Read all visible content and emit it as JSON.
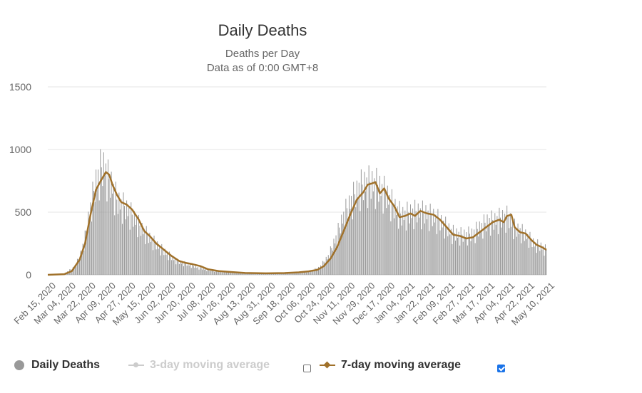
{
  "chart_data": {
    "type": "bar",
    "title": "Daily Deaths",
    "subtitle_lines": [
      "Deaths per Day",
      "Data as of 0:00 GMT+8"
    ],
    "ylim": [
      0,
      1500
    ],
    "yticks": [
      0,
      500,
      1000,
      1500
    ],
    "x_range": [
      "2020-02-15",
      "2021-05-15"
    ],
    "grid": true,
    "x_tick_labels": [
      "Feb 15, 2020",
      "Mar 04, 2020",
      "Mar 22, 2020",
      "Apr 09, 2020",
      "Apr 27, 2020",
      "May 15, 2020",
      "Jun 02, 2020",
      "Jun 20, 2020",
      "Jul 08, 2020",
      "Jul 26, 2020",
      "Aug 13, 2020",
      "Aug 31, 2020",
      "Sep 18, 2020",
      "Oct 06, 2020",
      "Oct 24, 2020",
      "Nov 11, 2020",
      "Nov 29, 2020",
      "Dec 17, 2020",
      "Jan 04, 2021",
      "Jan 22, 2021",
      "Feb 09, 2021",
      "Feb 27, 2021",
      "Mar 17, 2021",
      "Apr 04, 2021",
      "Apr 22, 2021",
      "May 10, 2021"
    ],
    "series": [
      {
        "name": "Daily Deaths",
        "kind": "bar",
        "color": "#999999",
        "visible": true,
        "points": [
          [
            "2020-02-15",
            0
          ],
          [
            "2020-03-01",
            10
          ],
          [
            "2020-03-10",
            60
          ],
          [
            "2020-03-15",
            140
          ],
          [
            "2020-03-20",
            300
          ],
          [
            "2020-03-25",
            550
          ],
          [
            "2020-03-30",
            750
          ],
          [
            "2020-04-03",
            850
          ],
          [
            "2020-04-07",
            880
          ],
          [
            "2020-04-10",
            780
          ],
          [
            "2020-04-14",
            720
          ],
          [
            "2020-04-18",
            600
          ],
          [
            "2020-04-25",
            550
          ],
          [
            "2020-05-02",
            480
          ],
          [
            "2020-05-10",
            380
          ],
          [
            "2020-05-18",
            300
          ],
          [
            "2020-05-26",
            230
          ],
          [
            "2020-06-03",
            170
          ],
          [
            "2020-06-12",
            110
          ],
          [
            "2020-06-20",
            90
          ],
          [
            "2020-07-01",
            60
          ],
          [
            "2020-07-10",
            40
          ],
          [
            "2020-07-25",
            25
          ],
          [
            "2020-08-13",
            15
          ],
          [
            "2020-09-01",
            12
          ],
          [
            "2020-09-18",
            15
          ],
          [
            "2020-10-01",
            20
          ],
          [
            "2020-10-12",
            30
          ],
          [
            "2020-10-20",
            60
          ],
          [
            "2020-10-28",
            150
          ],
          [
            "2020-11-04",
            300
          ],
          [
            "2020-11-11",
            480
          ],
          [
            "2020-11-18",
            600
          ],
          [
            "2020-11-25",
            700
          ],
          [
            "2020-12-01",
            740
          ],
          [
            "2020-12-08",
            740
          ],
          [
            "2020-12-15",
            700
          ],
          [
            "2020-12-20",
            650
          ],
          [
            "2020-12-27",
            550
          ],
          [
            "2021-01-03",
            480
          ],
          [
            "2021-01-10",
            500
          ],
          [
            "2021-01-17",
            510
          ],
          [
            "2021-01-24",
            500
          ],
          [
            "2021-02-01",
            470
          ],
          [
            "2021-02-09",
            420
          ],
          [
            "2021-02-18",
            340
          ],
          [
            "2021-02-27",
            320
          ],
          [
            "2021-03-08",
            330
          ],
          [
            "2021-03-15",
            380
          ],
          [
            "2021-03-22",
            430
          ],
          [
            "2021-03-29",
            440
          ],
          [
            "2021-04-04",
            460
          ],
          [
            "2021-04-10",
            470
          ],
          [
            "2021-04-16",
            380
          ],
          [
            "2021-04-22",
            350
          ],
          [
            "2021-04-28",
            310
          ],
          [
            "2021-05-04",
            250
          ],
          [
            "2021-05-10",
            230
          ],
          [
            "2021-05-15",
            200
          ]
        ]
      },
      {
        "name": "3-day moving average",
        "kind": "line",
        "color": "#cccccc",
        "visible": false,
        "points": []
      },
      {
        "name": "7-day moving average",
        "kind": "line",
        "color": "#a0712a",
        "visible": true,
        "points": [
          [
            "2020-02-15",
            0
          ],
          [
            "2020-03-01",
            5
          ],
          [
            "2020-03-08",
            30
          ],
          [
            "2020-03-15",
            120
          ],
          [
            "2020-03-20",
            250
          ],
          [
            "2020-03-25",
            480
          ],
          [
            "2020-03-30",
            680
          ],
          [
            "2020-04-04",
            760
          ],
          [
            "2020-04-08",
            820
          ],
          [
            "2020-04-11",
            800
          ],
          [
            "2020-04-14",
            720
          ],
          [
            "2020-04-18",
            640
          ],
          [
            "2020-04-22",
            580
          ],
          [
            "2020-04-27",
            560
          ],
          [
            "2020-05-02",
            520
          ],
          [
            "2020-05-08",
            440
          ],
          [
            "2020-05-13",
            350
          ],
          [
            "2020-05-18",
            310
          ],
          [
            "2020-05-24",
            250
          ],
          [
            "2020-05-31",
            200
          ],
          [
            "2020-06-07",
            150
          ],
          [
            "2020-06-14",
            110
          ],
          [
            "2020-06-20",
            95
          ],
          [
            "2020-06-26",
            85
          ],
          [
            "2020-07-03",
            70
          ],
          [
            "2020-07-10",
            45
          ],
          [
            "2020-07-20",
            30
          ],
          [
            "2020-08-01",
            22
          ],
          [
            "2020-08-13",
            15
          ],
          [
            "2020-09-01",
            12
          ],
          [
            "2020-09-18",
            14
          ],
          [
            "2020-10-01",
            20
          ],
          [
            "2020-10-10",
            28
          ],
          [
            "2020-10-18",
            40
          ],
          [
            "2020-10-24",
            70
          ],
          [
            "2020-10-30",
            130
          ],
          [
            "2020-11-05",
            220
          ],
          [
            "2020-11-11",
            350
          ],
          [
            "2020-11-17",
            480
          ],
          [
            "2020-11-23",
            600
          ],
          [
            "2020-11-29",
            660
          ],
          [
            "2020-12-03",
            720
          ],
          [
            "2020-12-07",
            730
          ],
          [
            "2020-12-10",
            740
          ],
          [
            "2020-12-14",
            650
          ],
          [
            "2020-12-18",
            690
          ],
          [
            "2020-12-22",
            610
          ],
          [
            "2020-12-27",
            550
          ],
          [
            "2021-01-01",
            460
          ],
          [
            "2021-01-06",
            470
          ],
          [
            "2021-01-11",
            490
          ],
          [
            "2021-01-15",
            470
          ],
          [
            "2021-01-20",
            510
          ],
          [
            "2021-01-26",
            490
          ],
          [
            "2021-02-01",
            480
          ],
          [
            "2021-02-07",
            440
          ],
          [
            "2021-02-13",
            380
          ],
          [
            "2021-02-19",
            320
          ],
          [
            "2021-02-25",
            310
          ],
          [
            "2021-03-03",
            290
          ],
          [
            "2021-03-09",
            300
          ],
          [
            "2021-03-15",
            340
          ],
          [
            "2021-03-21",
            380
          ],
          [
            "2021-03-27",
            420
          ],
          [
            "2021-04-02",
            440
          ],
          [
            "2021-04-06",
            420
          ],
          [
            "2021-04-09",
            470
          ],
          [
            "2021-04-13",
            480
          ],
          [
            "2021-04-16",
            380
          ],
          [
            "2021-04-21",
            340
          ],
          [
            "2021-04-26",
            330
          ],
          [
            "2021-05-01",
            280
          ],
          [
            "2021-05-06",
            240
          ],
          [
            "2021-05-11",
            220
          ],
          [
            "2021-05-15",
            200
          ]
        ]
      }
    ]
  },
  "legend": {
    "items": [
      {
        "label": "Daily Deaths",
        "color": "#333333"
      },
      {
        "label": "3-day moving average",
        "color": "#cccccc",
        "checked": false
      },
      {
        "label": "7-day moving average",
        "color": "#333333",
        "checked": true
      }
    ]
  }
}
